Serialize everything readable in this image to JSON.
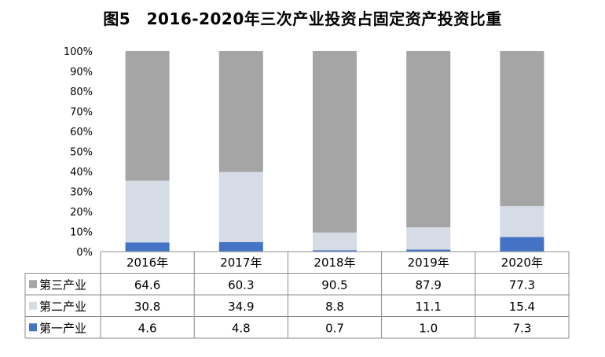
{
  "chart_data": {
    "type": "bar",
    "stacked": true,
    "title": "图5　2016-2020年三次产业投资占固定资产投资比重",
    "categories": [
      "2016年",
      "2017年",
      "2018年",
      "2019年",
      "2020年"
    ],
    "y_ticks": [
      "0%",
      "10%",
      "20%",
      "30%",
      "40%",
      "50%",
      "60%",
      "70%",
      "80%",
      "90%",
      "100%"
    ],
    "ylim": [
      0,
      100
    ],
    "grid": false,
    "legend_placement": "data-table",
    "series": [
      {
        "name": "第一产业",
        "values": [
          4.6,
          4.8,
          0.7,
          1.0,
          7.3
        ],
        "value_labels": [
          "4.6",
          "4.8",
          "0.7",
          "1.0",
          "7.3"
        ],
        "color": "#4472C4"
      },
      {
        "name": "第二产业",
        "values": [
          30.8,
          34.9,
          8.8,
          11.1,
          15.4
        ],
        "value_labels": [
          "30.8",
          "34.9",
          "8.8",
          "11.1",
          "15.4"
        ],
        "color": "#D6DCE5"
      },
      {
        "name": "第三产业",
        "values": [
          64.6,
          60.3,
          90.5,
          87.9,
          77.3
        ],
        "value_labels": [
          "64.6",
          "60.3",
          "90.5",
          "87.9",
          "77.3"
        ],
        "color": "#A5A5A5"
      }
    ],
    "table_row_order": [
      "第三产业",
      "第二产业",
      "第一产业"
    ]
  }
}
